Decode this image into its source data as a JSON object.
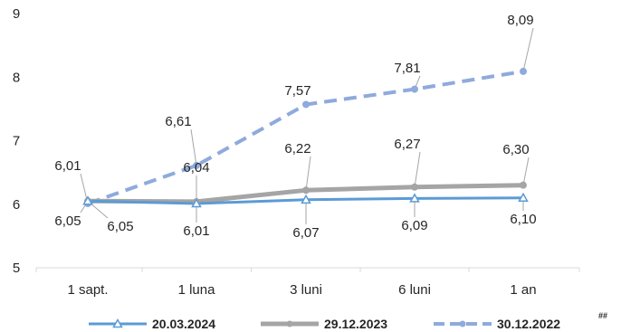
{
  "chart_data": {
    "type": "line",
    "categories": [
      "1 sapt.",
      "1 luna",
      "3 luni",
      "6 luni",
      "1 an"
    ],
    "ylim": [
      5,
      9
    ],
    "yticks": [
      "5",
      "6",
      "7",
      "8",
      "9"
    ],
    "grid": false,
    "legend_position": "bottom",
    "series": [
      {
        "name": "20.03.2024",
        "values": [
          6.05,
          6.01,
          6.07,
          6.09,
          6.1
        ],
        "labels": [
          "6,05",
          "6,01",
          "6,07",
          "6,09",
          "6,10"
        ],
        "color": "#5b9bd5",
        "style": "solid",
        "marker": "triangle"
      },
      {
        "name": "29.12.2023",
        "values": [
          6.05,
          6.04,
          6.22,
          6.27,
          6.3
        ],
        "labels": [
          "6,05",
          "6,04",
          "6,22",
          "6,27",
          "6,30"
        ],
        "color": "#a5a5a5",
        "style": "solid",
        "marker": "circle"
      },
      {
        "name": "30.12.2022",
        "values": [
          6.01,
          6.61,
          7.57,
          7.81,
          8.09
        ],
        "labels": [
          "6,01",
          "6,61",
          "7,57",
          "7,81",
          "8,09"
        ],
        "color": "#8faadc",
        "style": "dashed",
        "marker": "circle"
      }
    ],
    "footnote": "##"
  }
}
